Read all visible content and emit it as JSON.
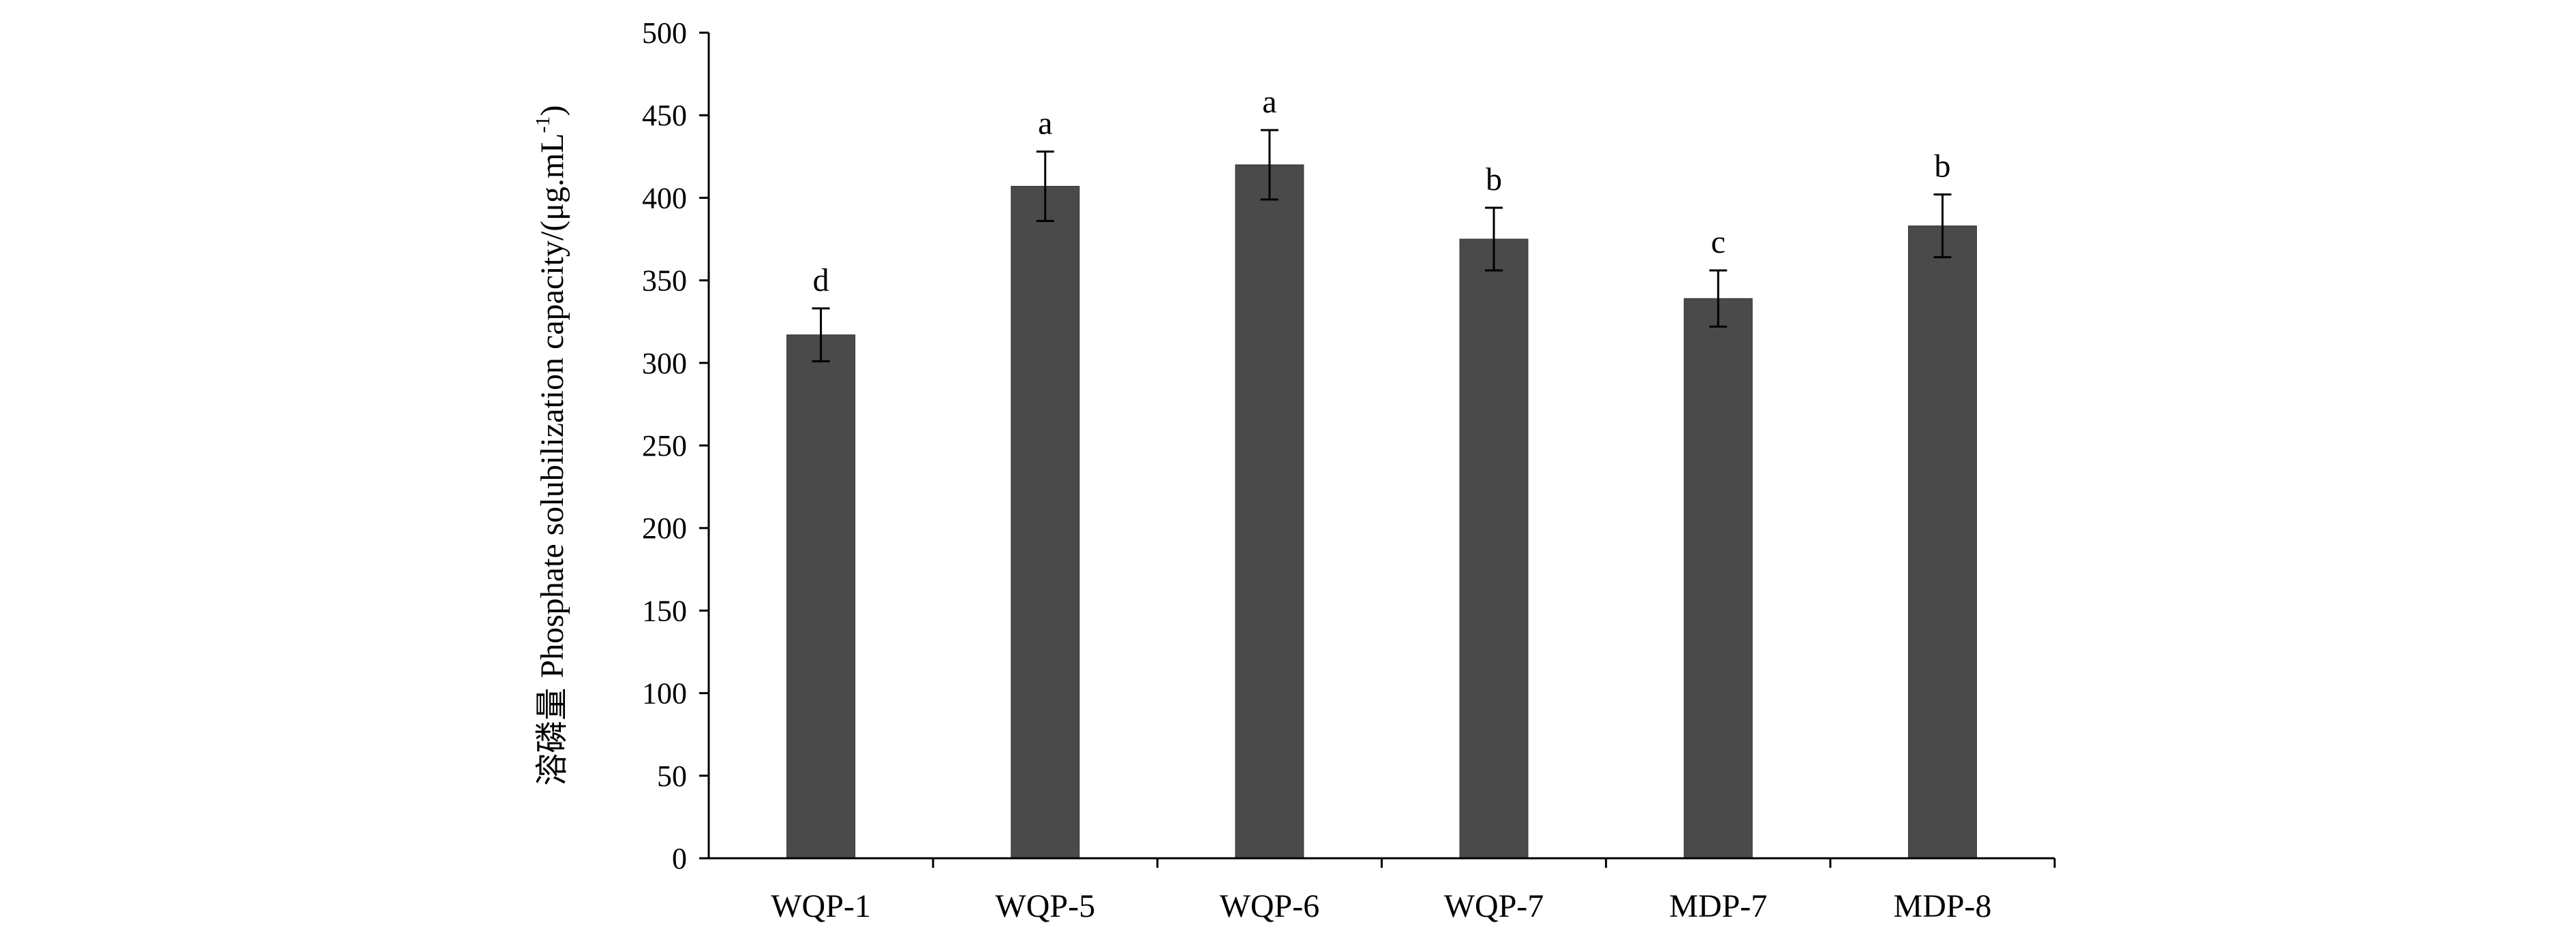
{
  "chart_data": {
    "type": "bar",
    "categories": [
      "WQP-1",
      "WQP-5",
      "WQP-6",
      "WQP-7",
      "MDP-7",
      "MDP-8"
    ],
    "values": [
      317,
      407,
      420,
      375,
      339,
      383
    ],
    "error": [
      16,
      21,
      21,
      19,
      17,
      19
    ],
    "significance": [
      "d",
      "a",
      "a",
      "b",
      "c",
      "b"
    ],
    "ylabel_cn": "溶磷量",
    "ylabel_en": "Phosphate solubilization  capacity/(μg.mL",
    "ylabel_sup": "-1",
    "ylabel_close": ")",
    "ylim": [
      0,
      500
    ],
    "yticks": [
      0,
      50,
      100,
      150,
      200,
      250,
      300,
      350,
      400,
      450,
      500
    ],
    "bar_color": "#4a4a4a",
    "grid": false,
    "legend": "none"
  }
}
